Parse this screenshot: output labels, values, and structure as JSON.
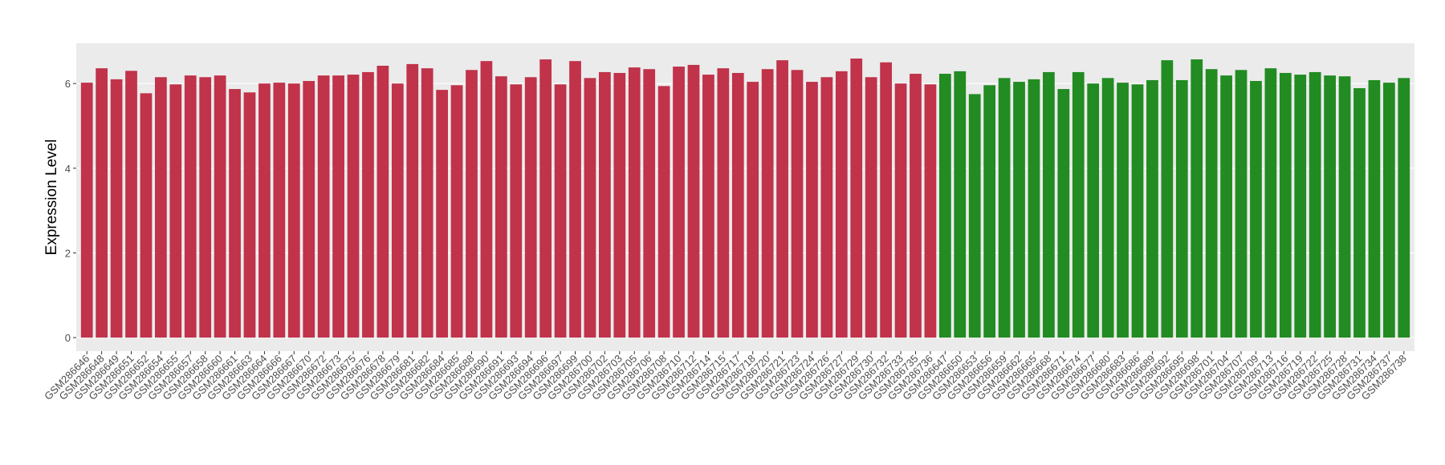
{
  "chart_data": {
    "type": "bar",
    "y_label": "Expression Level",
    "categories": [
      "GSM286646",
      "GSM286648",
      "GSM286649",
      "GSM286651",
      "GSM286652",
      "GSM286654",
      "GSM286655",
      "GSM286657",
      "GSM286658",
      "GSM286660",
      "GSM286661",
      "GSM286663",
      "GSM286664",
      "GSM286666",
      "GSM286667",
      "GSM286670",
      "GSM286672",
      "GSM286673",
      "GSM286675",
      "GSM286676",
      "GSM286678",
      "GSM286679",
      "GSM286681",
      "GSM286682",
      "GSM286684",
      "GSM286685",
      "GSM286688",
      "GSM286690",
      "GSM286691",
      "GSM286693",
      "GSM286694",
      "GSM286696",
      "GSM286697",
      "GSM286699",
      "GSM286700",
      "GSM286702",
      "GSM286703",
      "GSM286705",
      "GSM286706",
      "GSM286708",
      "GSM286710",
      "GSM286712",
      "GSM286714",
      "GSM286715",
      "GSM286717",
      "GSM286718",
      "GSM286720",
      "GSM286721",
      "GSM286723",
      "GSM286724",
      "GSM286726",
      "GSM286727",
      "GSM286729",
      "GSM286730",
      "GSM286732",
      "GSM286733",
      "GSM286735",
      "GSM286736",
      "GSM286647",
      "GSM286650",
      "GSM286653",
      "GSM286656",
      "GSM286659",
      "GSM286662",
      "GSM286665",
      "GSM286668",
      "GSM286671",
      "GSM286674",
      "GSM286677",
      "GSM286680",
      "GSM286683",
      "GSM286686",
      "GSM286689",
      "GSM286692",
      "GSM286695",
      "GSM286698",
      "GSM286701",
      "GSM286704",
      "GSM286707",
      "GSM286709",
      "GSM286713",
      "GSM286716",
      "GSM286719",
      "GSM286722",
      "GSM286725",
      "GSM286728",
      "GSM286731",
      "GSM286734",
      "GSM286737",
      "GSM286738"
    ],
    "series": [
      {
        "color": "#c0334a",
        "values": [
          6.02,
          6.36,
          6.1,
          6.3,
          5.77,
          6.15,
          5.98,
          6.19,
          6.15,
          6.19,
          5.87,
          5.79,
          6.0,
          6.02,
          6.0,
          6.06,
          6.19,
          6.19,
          6.21,
          6.27,
          6.42,
          6.0,
          6.46,
          6.36,
          5.85,
          5.96,
          6.32,
          6.53,
          6.17,
          5.98,
          6.15,
          6.57,
          5.98,
          6.53,
          6.13,
          6.27,
          6.25,
          6.38,
          6.34,
          5.94,
          6.4,
          6.44,
          6.21,
          6.36,
          6.25,
          6.04,
          6.34,
          6.55,
          6.32,
          6.04,
          6.15,
          6.29,
          6.59,
          6.15,
          6.5,
          6.0,
          6.23,
          5.98,
          null,
          null,
          null,
          null,
          null,
          null,
          null,
          null,
          null,
          null,
          null,
          null,
          null,
          null,
          null,
          null,
          null,
          null,
          null,
          null,
          null,
          null,
          null,
          null,
          null,
          null,
          null,
          null,
          null,
          null,
          null,
          null
        ]
      },
      {
        "color": "#228b22",
        "values": [
          null,
          null,
          null,
          null,
          null,
          null,
          null,
          null,
          null,
          null,
          null,
          null,
          null,
          null,
          null,
          null,
          null,
          null,
          null,
          null,
          null,
          null,
          null,
          null,
          null,
          null,
          null,
          null,
          null,
          null,
          null,
          null,
          null,
          null,
          null,
          null,
          null,
          null,
          null,
          null,
          null,
          null,
          null,
          null,
          null,
          null,
          null,
          null,
          null,
          null,
          null,
          null,
          null,
          null,
          null,
          null,
          null,
          null,
          6.23,
          6.29,
          5.75,
          5.96,
          6.13,
          6.04,
          6.1,
          6.27,
          5.87,
          6.27,
          6.0,
          6.13,
          6.02,
          5.98,
          6.08,
          6.55,
          6.08,
          6.57,
          6.34,
          6.19,
          6.32,
          6.06,
          6.36,
          6.25,
          6.21,
          6.27,
          6.19,
          6.17,
          5.89,
          6.08,
          6.02,
          6.13
        ]
      }
    ],
    "ylim": [
      -0.32,
      6.95
    ],
    "yticks": [
      0,
      2,
      4,
      6
    ],
    "grid": true
  }
}
